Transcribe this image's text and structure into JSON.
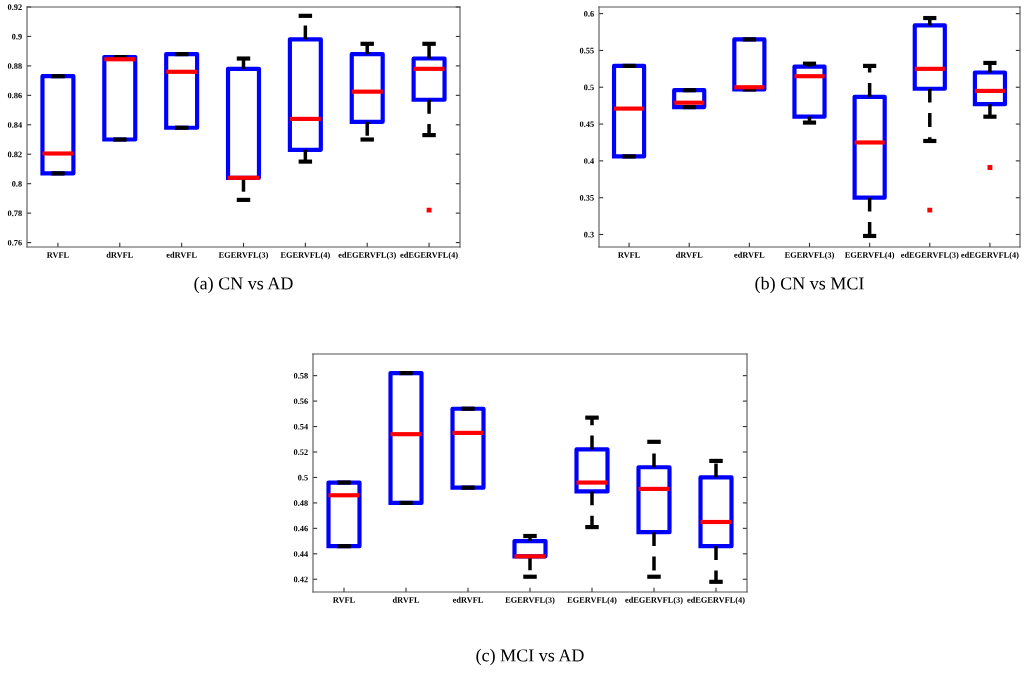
{
  "chart_data": [
    {
      "type": "box",
      "title": "(a) CN vs AD",
      "categories": [
        "RVFL",
        "dRVFL",
        "edRVFL",
        "EGERVFL(3)",
        "EGERVFL(4)",
        "edEGERVFL(3)",
        "edEGERVFL(4)"
      ],
      "ylim": [
        0.757,
        0.92
      ],
      "yticks": [
        0.76,
        0.78,
        0.8,
        0.82,
        0.84,
        0.86,
        0.88,
        0.9,
        0.92
      ],
      "grid": false,
      "series": [
        {
          "color": "#0000ff",
          "boxes": [
            {
              "low": 0.807,
              "q1": 0.807,
              "median": 0.8205,
              "q3": 0.873,
              "high": 0.873
            },
            {
              "low": 0.83,
              "q1": 0.83,
              "median": 0.8845,
              "q3": 0.886,
              "high": 0.886
            },
            {
              "low": 0.838,
              "q1": 0.838,
              "median": 0.876,
              "q3": 0.888,
              "high": 0.888
            },
            {
              "low": 0.789,
              "q1": 0.804,
              "median": 0.804,
              "q3": 0.878,
              "high": 0.885
            },
            {
              "low": 0.815,
              "q1": 0.823,
              "median": 0.844,
              "q3": 0.898,
              "high": 0.914
            },
            {
              "low": 0.83,
              "q1": 0.842,
              "median": 0.8625,
              "q3": 0.888,
              "high": 0.895
            },
            {
              "low": 0.833,
              "q1": 0.857,
              "median": 0.878,
              "q3": 0.885,
              "high": 0.895,
              "outliers": [
                0.782
              ]
            }
          ]
        }
      ]
    },
    {
      "type": "box",
      "title": "(b) CN vs MCI",
      "categories": [
        "RVFL",
        "dRVFL",
        "edRVFL",
        "EGERVFL(3)",
        "EGERVFL(4)",
        "edEGERVFL(3)",
        "edEGERVFL(4)"
      ],
      "ylim": [
        0.283,
        0.609
      ],
      "yticks": [
        0.3,
        0.35,
        0.4,
        0.45,
        0.5,
        0.55,
        0.6
      ],
      "grid": false,
      "series": [
        {
          "color": "#0000ff",
          "boxes": [
            {
              "low": 0.406,
              "q1": 0.406,
              "median": 0.471,
              "q3": 0.529,
              "high": 0.529
            },
            {
              "low": 0.473,
              "q1": 0.473,
              "median": 0.479,
              "q3": 0.496,
              "high": 0.496
            },
            {
              "low": 0.497,
              "q1": 0.497,
              "median": 0.5,
              "q3": 0.565,
              "high": 0.565
            },
            {
              "low": 0.452,
              "q1": 0.46,
              "median": 0.515,
              "q3": 0.528,
              "high": 0.532
            },
            {
              "low": 0.298,
              "q1": 0.35,
              "median": 0.425,
              "q3": 0.487,
              "high": 0.529
            },
            {
              "low": 0.427,
              "q1": 0.498,
              "median": 0.525,
              "q3": 0.584,
              "high": 0.594,
              "outliers": [
                0.333
              ]
            },
            {
              "low": 0.46,
              "q1": 0.477,
              "median": 0.495,
              "q3": 0.52,
              "high": 0.533,
              "outliers": [
                0.391
              ]
            }
          ]
        }
      ]
    },
    {
      "type": "box",
      "title": "(c) MCI vs AD",
      "categories": [
        "RVFL",
        "dRVFL",
        "edRVFL",
        "EGERVFL(3)",
        "EGERVFL(4)",
        "edEGERVFL(3)",
        "edEGERVFL(4)"
      ],
      "ylim": [
        0.41,
        0.597
      ],
      "yticks": [
        0.42,
        0.44,
        0.46,
        0.48,
        0.5,
        0.52,
        0.54,
        0.56,
        0.58
      ],
      "grid": false,
      "series": [
        {
          "color": "#0000ff",
          "boxes": [
            {
              "low": 0.446,
              "q1": 0.446,
              "median": 0.486,
              "q3": 0.496,
              "high": 0.496
            },
            {
              "low": 0.48,
              "q1": 0.48,
              "median": 0.534,
              "q3": 0.582,
              "high": 0.582
            },
            {
              "low": 0.492,
              "q1": 0.492,
              "median": 0.535,
              "q3": 0.554,
              "high": 0.554
            },
            {
              "low": 0.422,
              "q1": 0.438,
              "median": 0.438,
              "q3": 0.45,
              "high": 0.454
            },
            {
              "low": 0.461,
              "q1": 0.489,
              "median": 0.496,
              "q3": 0.522,
              "high": 0.547
            },
            {
              "low": 0.422,
              "q1": 0.457,
              "median": 0.491,
              "q3": 0.508,
              "high": 0.528
            },
            {
              "low": 0.418,
              "q1": 0.446,
              "median": 0.465,
              "q3": 0.5,
              "high": 0.513
            }
          ]
        }
      ]
    }
  ]
}
